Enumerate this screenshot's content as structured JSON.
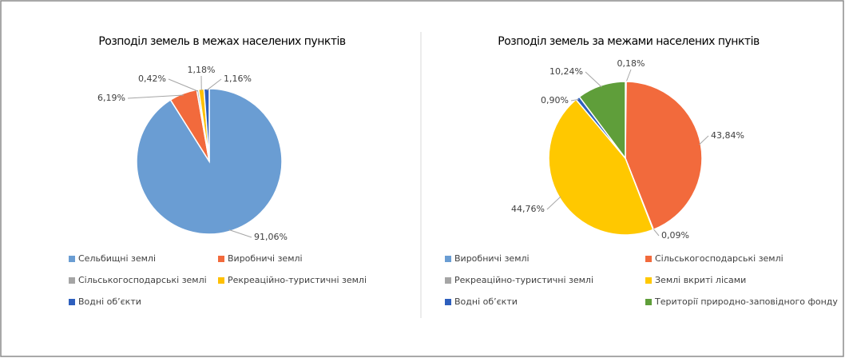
{
  "chart_data": [
    {
      "type": "pie",
      "title": "Розподіл земель в межах населених пунктів",
      "categories": [
        "Сельбищні землі",
        "Виробничі землі",
        "Сільськогосподарські землі",
        "Рекреаційно-туристичні землі",
        "Водні об’єкти"
      ],
      "values": [
        91.06,
        6.19,
        0.42,
        1.18,
        1.16
      ],
      "value_labels": [
        "91,06%",
        "6,19%",
        "0,42%",
        "1,18%",
        "1,16%"
      ],
      "colors": [
        "#6a9dd3",
        "#f26a3c",
        "#a5a5a5",
        "#ffc000",
        "#2e5fbd"
      ]
    },
    {
      "type": "pie",
      "title": "Розподіл земель за межами населених пунктів",
      "categories": [
        "Виробничі землі",
        "Сільськогосподарські землі",
        "Рекреаційно-туристичні землі",
        "Землі вкриті лісами",
        "Водні об’єкти",
        "Території природно-заповідного фонду"
      ],
      "values": [
        0.18,
        43.84,
        0.09,
        44.76,
        0.9,
        10.24
      ],
      "value_labels": [
        "0,18%",
        "43,84%",
        "0,09%",
        "44,76%",
        "0,90%",
        "10,24%"
      ],
      "colors": [
        "#6a9dd3",
        "#f26a3c",
        "#a5a5a5",
        "#ffc800",
        "#2e5fbd",
        "#5f9e3a"
      ]
    }
  ]
}
